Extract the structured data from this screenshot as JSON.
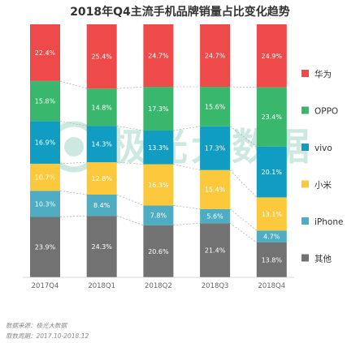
{
  "chart_data": {
    "type": "bar",
    "stacked": true,
    "title": "2018年Q4主流手机品牌销量占比变化趋势",
    "categories": [
      "2017Q4",
      "2018Q1",
      "2018Q2",
      "2018Q3",
      "2018Q4"
    ],
    "series": [
      {
        "name": "其他",
        "color": "#727272",
        "values": [
          23.9,
          24.3,
          20.6,
          21.4,
          13.8
        ],
        "labels": [
          "23.9%",
          "24.3%",
          "20.6%",
          "21.4%",
          "13.8%"
        ]
      },
      {
        "name": "iPhone",
        "color": "#4eadc2",
        "values": [
          10.3,
          8.4,
          7.8,
          5.6,
          4.7
        ],
        "labels": [
          "10.3%",
          "8.4%",
          "7.8%",
          "5.6%",
          "4.7%"
        ]
      },
      {
        "name": "小米",
        "color": "#fcc93c",
        "values": [
          10.7,
          12.8,
          16.3,
          15.4,
          13.1
        ],
        "labels": [
          "10.7%",
          "12.8%",
          "16.3%",
          "15.4%",
          "13.1%"
        ]
      },
      {
        "name": "vivo",
        "color": "#119dc2",
        "values": [
          16.9,
          14.3,
          13.3,
          17.3,
          20.1
        ],
        "labels": [
          "16.9%",
          "14.3%",
          "13.3%",
          "17.3%",
          "20.1%"
        ]
      },
      {
        "name": "OPPO",
        "color": "#39b76c",
        "values": [
          15.8,
          14.8,
          17.3,
          15.6,
          23.4
        ],
        "labels": [
          "15.8%",
          "14.8%",
          "17.3%",
          "15.6%",
          "23.4%"
        ]
      },
      {
        "name": "华为",
        "color": "#ee4a49",
        "values": [
          22.4,
          25.4,
          24.7,
          24.7,
          24.9
        ],
        "labels": [
          "22.4%",
          "25.4%",
          "24.7%",
          "24.7%",
          "24.9%"
        ]
      }
    ],
    "ylim": [
      0,
      100
    ],
    "grid": false,
    "connector_lines": true,
    "legend_placement": "right",
    "legend_order": [
      "华为",
      "OPPO",
      "vivo",
      "小米",
      "iPhone",
      "其他"
    ]
  },
  "watermark": "极光大数据",
  "footnotes": {
    "source": "数据来源：极光大数据",
    "period": "取数周期：2017.10-2018.12"
  }
}
